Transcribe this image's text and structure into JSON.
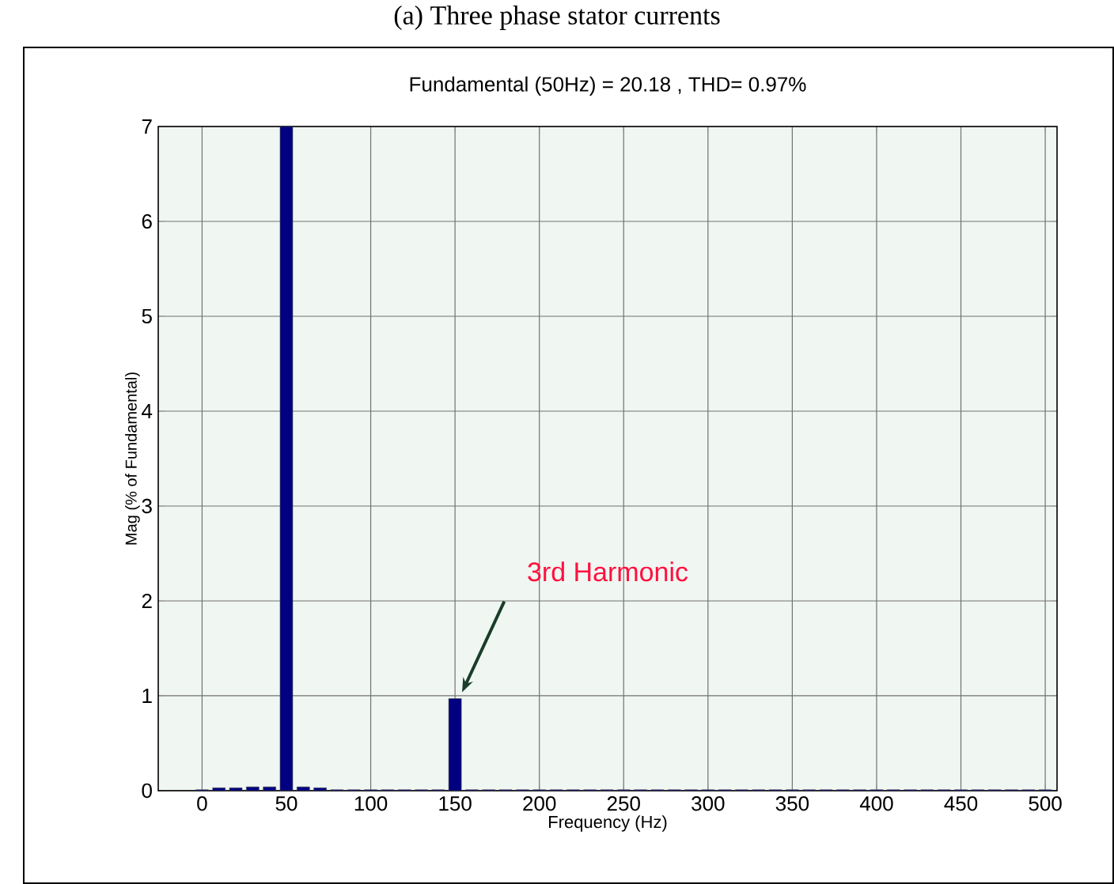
{
  "chart_data": {
    "type": "bar",
    "title": "(a) Three phase stator currents",
    "subtitle": "Fundamental (50Hz) = 20.18 , THD= 0.97%",
    "xlabel": "Frequency (Hz)",
    "ylabel": "Mag (% of Fundamental)",
    "x": [
      0,
      10,
      20,
      30,
      40,
      50,
      60,
      70,
      80,
      90,
      100,
      110,
      120,
      130,
      140,
      150,
      160,
      170,
      180,
      190,
      200,
      210,
      220,
      230,
      240,
      250,
      260,
      270,
      280,
      290,
      300,
      310,
      320,
      330,
      340,
      350,
      360,
      370,
      380,
      390,
      400,
      410,
      420,
      430,
      440,
      450,
      460,
      470,
      480,
      490,
      500
    ],
    "values": [
      0.01,
      0.03,
      0.03,
      0.04,
      0.04,
      7,
      0.04,
      0.03,
      0.01,
      0.01,
      0.01,
      0.01,
      0.01,
      0.01,
      0.01,
      0.97,
      0.01,
      0.01,
      0.01,
      0.01,
      0.01,
      0.01,
      0.01,
      0.01,
      0.01,
      0.01,
      0.01,
      0.01,
      0.01,
      0.01,
      0.01,
      0.01,
      0.01,
      0.01,
      0.01,
      0.01,
      0.01,
      0.01,
      0.01,
      0.01,
      0.01,
      0.01,
      0.01,
      0.01,
      0.01,
      0.01,
      0.01,
      0.01,
      0.01,
      0.01,
      0.01
    ],
    "color": "#000080",
    "xlim": [
      -26,
      507
    ],
    "ylim": [
      0,
      7
    ],
    "xticks": [
      0,
      50,
      100,
      150,
      200,
      250,
      300,
      350,
      400,
      450,
      500
    ],
    "yticks": [
      0,
      1,
      2,
      3,
      4,
      5,
      6,
      7
    ],
    "grid": true,
    "annotations": [
      "3rd Harmonic"
    ]
  }
}
